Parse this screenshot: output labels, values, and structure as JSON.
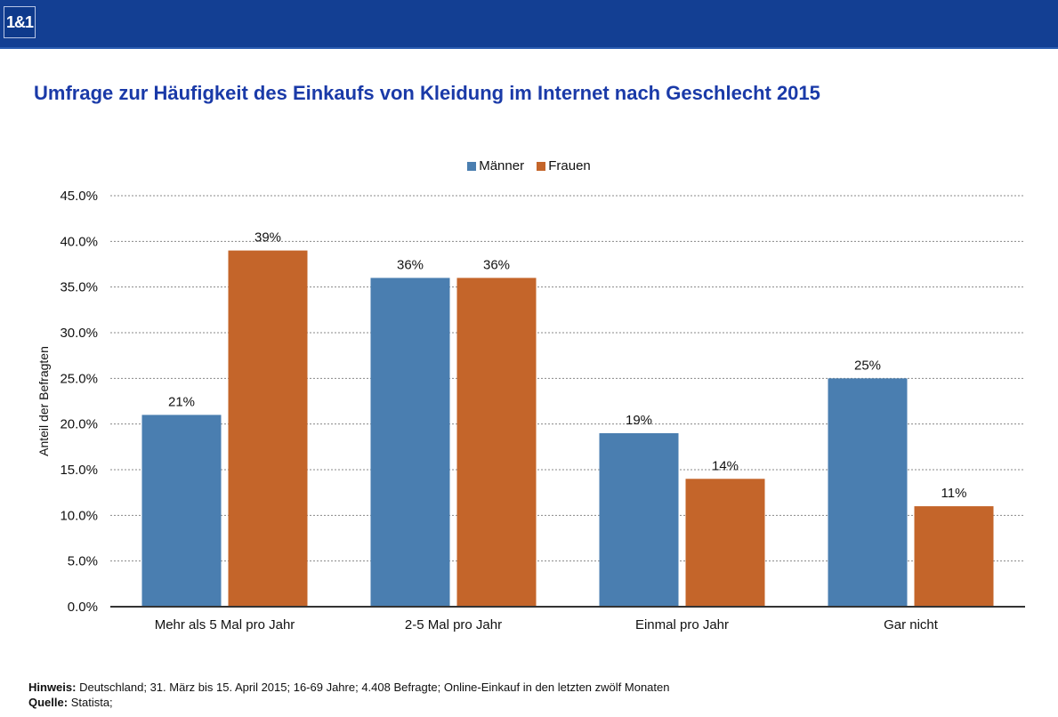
{
  "header": {
    "logo_text": "1&1",
    "brand_color": "#133f93"
  },
  "chart_data": {
    "type": "bar",
    "title": "Umfrage zur Häufigkeit des Einkaufs von Kleidung im Internet nach Geschlecht 2015",
    "xlabel": "",
    "ylabel": "Anteil der Befragten",
    "ylim": [
      0,
      45
    ],
    "yticks": [
      0,
      5,
      10,
      15,
      20,
      25,
      30,
      35,
      40,
      45
    ],
    "ytick_labels": [
      "0.0%",
      "5.0%",
      "10.0%",
      "15.0%",
      "20.0%",
      "25.0%",
      "30.0%",
      "35.0%",
      "40.0%",
      "45.0%"
    ],
    "grid": true,
    "legend_position": "top-center",
    "categories": [
      "Mehr als 5 Mal pro Jahr",
      "2-5 Mal pro Jahr",
      "Einmal pro Jahr",
      "Gar nicht"
    ],
    "series": [
      {
        "name": "Männer",
        "color": "#4a7eb0",
        "values": [
          21,
          36,
          19,
          25
        ],
        "labels": [
          "21%",
          "36%",
          "19%",
          "25%"
        ]
      },
      {
        "name": "Frauen",
        "color": "#c4652a",
        "values": [
          39,
          36,
          14,
          11
        ],
        "labels": [
          "39%",
          "36%",
          "14%",
          "11%"
        ]
      }
    ]
  },
  "footer": {
    "note_label": "Hinweis:",
    "note_text": " Deutschland; 31. März bis 15. April 2015; 16-69 Jahre; 4.408 Befragte; Online-Einkauf in den letzten zwölf Monaten",
    "source_label": "Quelle:",
    "source_text": " Statista;"
  }
}
